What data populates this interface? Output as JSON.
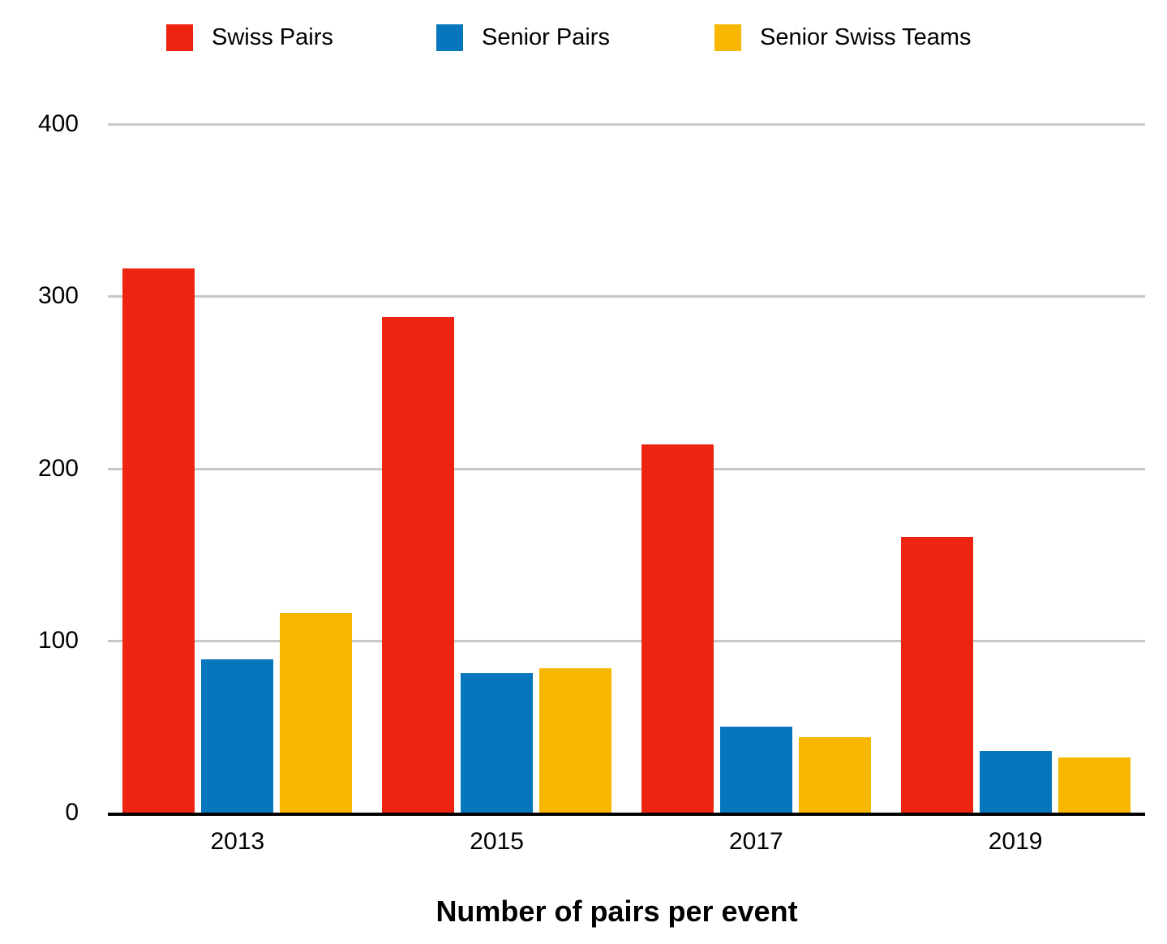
{
  "chart_data": {
    "type": "bar",
    "title": "",
    "xlabel": "Number of pairs per event",
    "ylabel": "",
    "categories": [
      "2013",
      "2015",
      "2017",
      "2019"
    ],
    "series": [
      {
        "name": "Swiss Pairs",
        "color": "#ee2412",
        "values": [
          316,
          288,
          214,
          160
        ]
      },
      {
        "name": "Senior Pairs",
        "color": "#0777bd",
        "values": [
          89,
          81,
          50,
          36
        ]
      },
      {
        "name": "Senior Swiss Teams",
        "color": "#f7b600",
        "values": [
          116,
          84,
          44,
          32
        ]
      }
    ],
    "ylim": [
      0,
      400
    ],
    "yticks": [
      0,
      100,
      200,
      300,
      400
    ],
    "grid": true,
    "legend_position": "top",
    "colors": {
      "gridline": "#c8c8c8",
      "axis_line": "#000000",
      "text": "#000000",
      "background": "#ffffff"
    }
  }
}
